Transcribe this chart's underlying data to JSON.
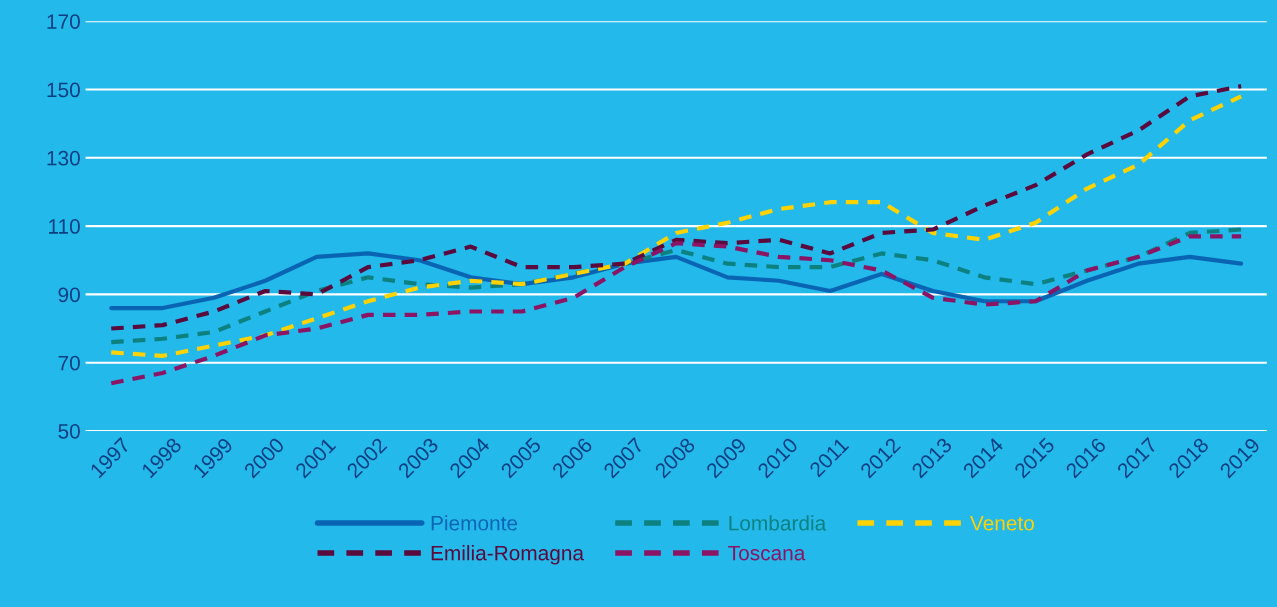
{
  "chart_data": {
    "type": "line",
    "categories": [
      "1997",
      "1998",
      "1999",
      "2000",
      "2001",
      "2002",
      "2003",
      "2004",
      "2005",
      "2006",
      "2007",
      "2008",
      "2009",
      "2010",
      "2011",
      "2012",
      "2013",
      "2014",
      "2015",
      "2016",
      "2017",
      "2018",
      "2019"
    ],
    "series": [
      {
        "name": "Piemonte",
        "color": "#0a64b4",
        "line_style": "solid",
        "values": [
          86,
          86,
          89,
          94,
          101,
          102,
          100,
          95,
          93,
          95,
          99,
          101,
          95,
          94,
          91,
          96,
          91,
          88,
          88,
          94,
          99,
          101,
          99
        ]
      },
      {
        "name": "Lombardia",
        "color": "#0d8080",
        "line_style": "dashed",
        "values": [
          76,
          77,
          79,
          85,
          91,
          95,
          93,
          92,
          93,
          96,
          99,
          103,
          99,
          98,
          98,
          102,
          100,
          95,
          93,
          97,
          101,
          108,
          109
        ]
      },
      {
        "name": "Veneto",
        "color": "#ffd200",
        "line_style": "dashed",
        "values": [
          73,
          72,
          75,
          78,
          83,
          88,
          92,
          94,
          93,
          96,
          99,
          108,
          111,
          115,
          117,
          117,
          108,
          106,
          111,
          121,
          128,
          141,
          148
        ]
      },
      {
        "name": "Emilia-Romagna",
        "color": "#5a0a3c",
        "line_style": "dashed",
        "values": [
          80,
          81,
          85,
          91,
          90,
          98,
          100,
          104,
          98,
          98,
          99,
          106,
          105,
          106,
          102,
          108,
          109,
          116,
          122,
          131,
          138,
          148,
          151
        ]
      },
      {
        "name": "Toscana",
        "color": "#8c1464",
        "line_style": "dashed",
        "values": [
          64,
          67,
          72,
          78,
          80,
          84,
          84,
          85,
          85,
          89,
          98,
          105,
          104,
          101,
          100,
          97,
          89,
          87,
          88,
          97,
          101,
          107,
          107
        ]
      }
    ],
    "ylim": [
      50,
      170
    ],
    "yticks": [
      50,
      70,
      90,
      110,
      130,
      150,
      170
    ],
    "grid": "y",
    "legend": "bottom"
  }
}
